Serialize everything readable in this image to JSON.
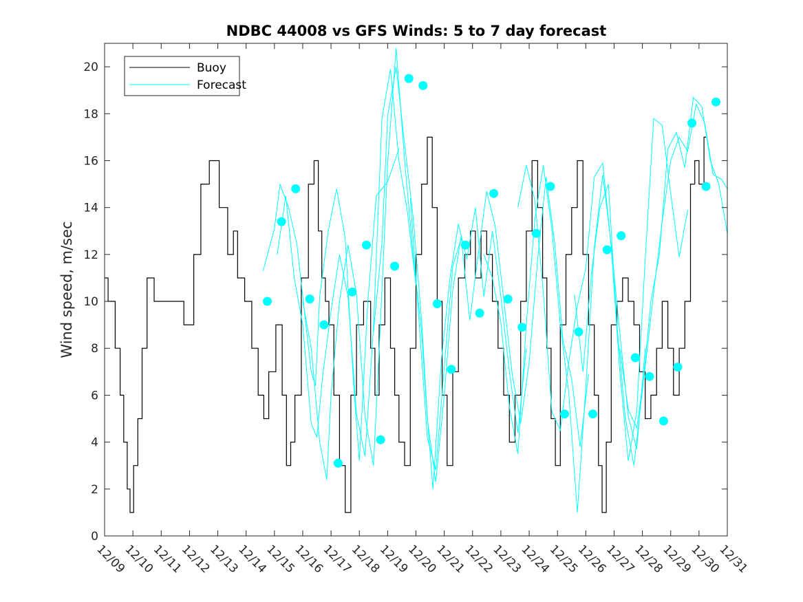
{
  "chart_data": {
    "type": "line",
    "title": "NDBC 44008 vs GFS Winds: 5 to 7 day forecast",
    "xlabel": "",
    "ylabel": "Wind speed, m/sec",
    "xlim": [
      0,
      22
    ],
    "ylim": [
      0,
      21
    ],
    "yticks": [
      0,
      2,
      4,
      6,
      8,
      10,
      12,
      14,
      16,
      18,
      20
    ],
    "x_tick_labels": [
      "12/09",
      "12/10",
      "12/11",
      "12/12",
      "12/13",
      "12/14",
      "12/15",
      "12/16",
      "12/17",
      "12/18",
      "12/19",
      "12/20",
      "12/21",
      "12/22",
      "12/23",
      "12/24",
      "12/25",
      "12/26",
      "12/27",
      "12/28",
      "12/29",
      "12/30",
      "12/31"
    ],
    "x_units": "days since 12/09 00:00",
    "legend": {
      "position": "top-left",
      "entries": [
        "Buoy",
        "Forecast"
      ]
    },
    "colors": {
      "buoy": "#000000",
      "forecast": "#00ffff",
      "axes": "#262626"
    },
    "buoy_series": {
      "name": "Buoy",
      "color": "#000000",
      "x": [
        0,
        0.25,
        0.5,
        0.6,
        0.75,
        0.85,
        0.95,
        1.1,
        1.25,
        1.4,
        1.6,
        1.9,
        2.3,
        2.6,
        3.0,
        3.3,
        3.5,
        3.9,
        4.2,
        4.5,
        4.6,
        4.8,
        5.1,
        5.3,
        5.55,
        5.7,
        5.9,
        6.2,
        6.35,
        6.5,
        6.65,
        6.8,
        7.1,
        7.3,
        7.5,
        7.6,
        7.75,
        7.85,
        8.0,
        8.2,
        8.4,
        8.6,
        8.8,
        9.0,
        9.3,
        9.5,
        9.6,
        9.8,
        10.0,
        10.2,
        10.3,
        10.5,
        10.7,
        10.9,
        11.1,
        11.3,
        11.5,
        11.65,
        11.85,
        12.0,
        12.2,
        12.4,
        12.6,
        12.85,
        13.0,
        13.2,
        13.4,
        13.6,
        13.8,
        14.0,
        14.2,
        14.4,
        14.6,
        14.8,
        15.0,
        15.2,
        15.4,
        15.55,
        15.7,
        15.85,
        16.0,
        16.2,
        16.4,
        16.6,
        16.8,
        17.0,
        17.2,
        17.4,
        17.5,
        17.65,
        17.8,
        18.0,
        18.2,
        18.4,
        18.6,
        18.8,
        19.0,
        19.2,
        19.4,
        19.6,
        19.8,
        20.0,
        20.2,
        20.4,
        20.6,
        20.8,
        20.9,
        21.1,
        21.25
      ],
      "y": [
        11,
        10,
        8,
        6,
        4,
        2,
        1,
        3,
        5,
        8,
        11,
        10,
        10,
        10,
        9,
        12,
        15,
        16,
        14,
        12,
        13,
        11,
        10,
        8,
        6,
        5,
        7,
        9,
        6,
        3,
        4,
        6,
        11,
        15,
        16,
        13,
        11,
        10,
        9,
        6,
        3,
        1,
        6,
        9,
        10,
        8,
        6,
        9,
        11,
        8,
        6,
        4,
        3,
        8,
        12,
        15,
        17,
        14,
        10,
        6,
        3,
        7,
        11,
        12,
        13,
        11,
        13,
        12,
        10,
        8,
        6,
        4,
        6,
        10,
        13,
        16,
        14,
        11,
        8,
        5,
        3,
        9,
        12,
        14,
        16,
        12,
        9,
        6,
        3,
        1,
        4,
        9,
        10,
        11,
        10,
        9,
        7,
        5,
        6,
        8,
        10,
        8,
        6,
        8,
        10,
        15,
        16,
        15,
        17
      ]
    },
    "forecast_runs": [
      {
        "color": "#00ffff",
        "x": [
          5.6,
          6.0,
          6.2,
          6.5,
          6.8,
          7.0,
          7.3,
          7.45,
          7.6,
          7.9,
          8.2,
          8.5,
          8.8,
          9.0,
          9.3,
          9.6,
          10.0,
          10.4
        ],
        "y": [
          11.3,
          13.1,
          15.0,
          14.0,
          12.4,
          10.2,
          7.0,
          6.4,
          10.2,
          13.0,
          14.8,
          12.7,
          6.4,
          3.2,
          10.0,
          14.5,
          15.1,
          16.5
        ]
      },
      {
        "color": "#00ffff",
        "x": [
          6.1,
          6.4,
          6.7,
          7.0,
          7.3,
          7.5,
          7.7,
          8.0,
          8.3,
          8.6,
          8.9,
          9.2,
          9.5,
          9.8,
          10.1,
          10.4,
          10.7,
          11.0
        ],
        "y": [
          12.0,
          14.5,
          11.0,
          9.0,
          4.8,
          4.2,
          6.8,
          9.6,
          12.0,
          10.2,
          5.2,
          3.4,
          8.9,
          17.8,
          19.9,
          16.0,
          13.8,
          10.7
        ]
      },
      {
        "color": "#00ffff",
        "x": [
          7.0,
          7.3,
          7.6,
          7.85,
          8.0,
          8.3,
          8.6,
          8.9,
          9.2,
          9.5,
          9.75,
          10.0,
          10.3,
          10.6,
          10.9,
          11.2,
          11.4,
          11.7,
          12.0,
          12.3,
          12.6
        ],
        "y": [
          10.0,
          8.0,
          4.0,
          2.4,
          6.0,
          10.0,
          12.4,
          10.3,
          5.1,
          3.0,
          9.2,
          15.9,
          20.8,
          16.0,
          12.0,
          8.7,
          5.0,
          2.3,
          6.0,
          10.5,
          12.8
        ]
      },
      {
        "color": "#00ffff",
        "x": [
          9.5,
          9.8,
          10.0,
          10.3,
          10.6,
          10.9,
          11.2,
          11.4,
          11.6,
          11.9,
          12.2,
          12.5,
          12.8,
          13.1,
          13.4,
          13.7,
          14.0,
          14.3,
          14.6,
          14.9
        ],
        "y": [
          8.7,
          12.5,
          17.9,
          20.0,
          16.7,
          13.6,
          9.2,
          5.1,
          2.0,
          7.5,
          11.0,
          13.3,
          11.8,
          14.0,
          10.2,
          13.0,
          10.2,
          7.0,
          4.4,
          8.0
        ]
      },
      {
        "color": "#00ffff",
        "x": [
          10.8,
          11.1,
          11.4,
          11.7,
          12.0,
          12.3,
          12.6,
          12.9,
          13.2,
          13.5,
          13.8,
          14.1,
          14.4,
          14.7,
          15.0,
          15.3,
          15.6,
          15.9,
          16.2,
          16.5,
          16.8,
          17.1
        ],
        "y": [
          14.4,
          9.3,
          4.2,
          2.8,
          7.2,
          11.5,
          12.7,
          9.2,
          12.0,
          14.7,
          13.2,
          10.1,
          6.9,
          4.8,
          7.4,
          11.8,
          15.3,
          12.5,
          8.3,
          6.7,
          3.8,
          6.9
        ]
      },
      {
        "color": "#00ffff",
        "x": [
          13.4,
          13.7,
          14.0,
          14.3,
          14.6,
          14.9,
          15.2,
          15.5,
          15.8,
          16.1,
          16.4,
          16.7,
          17.0,
          17.3,
          17.6,
          17.9,
          18.2,
          18.5,
          18.8,
          19.1
        ],
        "y": [
          12.0,
          11.0,
          9.1,
          5.5,
          3.5,
          9.0,
          13.5,
          15.8,
          13.1,
          9.0,
          6.1,
          1.0,
          6.3,
          12.3,
          15.4,
          12.4,
          8.7,
          5.1,
          3.7,
          8.0
        ]
      },
      {
        "color": "#00ffff",
        "x": [
          14.6,
          14.9,
          15.2,
          15.5,
          15.8,
          16.1,
          16.4,
          16.7,
          17.0,
          17.3,
          17.6,
          17.9,
          18.2,
          18.5,
          18.8,
          19.1,
          19.4,
          19.7,
          20.0,
          20.3,
          20.6
        ],
        "y": [
          14.0,
          15.8,
          14.3,
          10.4,
          5.3,
          4.5,
          7.4,
          9.8,
          11.4,
          15.3,
          15.9,
          12.3,
          7.0,
          3.2,
          5.3,
          11.8,
          17.8,
          17.5,
          14.6,
          11.9,
          13.9
        ]
      },
      {
        "color": "#00ffff",
        "x": [
          16.6,
          16.9,
          17.2,
          17.5,
          17.8,
          18.1,
          18.4,
          18.7,
          19.0,
          19.3,
          19.6,
          19.9,
          20.2,
          20.5,
          20.8,
          21.1,
          21.4,
          21.7,
          22.0
        ],
        "y": [
          10.3,
          7.0,
          11.2,
          14.0,
          15.0,
          9.0,
          5.0,
          3.0,
          6.2,
          10.0,
          12.0,
          16.5,
          17.2,
          15.7,
          18.7,
          18.3,
          16.0,
          15.0,
          12.9
        ]
      },
      {
        "color": "#00ffff",
        "x": [
          18.2,
          18.5,
          18.8,
          19.1,
          19.4,
          19.7,
          20.0,
          20.3,
          20.6,
          20.9,
          21.2,
          21.5,
          21.8,
          22.0
        ],
        "y": [
          8.0,
          5.4,
          4.6,
          7.2,
          10.4,
          13.4,
          16.0,
          17.0,
          16.4,
          18.4,
          17.6,
          15.4,
          15.2,
          14.8
        ]
      }
    ],
    "forecast_markers": {
      "color": "#00ffff",
      "x": [
        5.75,
        6.25,
        6.75,
        7.25,
        7.75,
        8.25,
        8.75,
        9.25,
        9.75,
        10.25,
        10.75,
        11.25,
        11.75,
        12.25,
        12.75,
        13.25,
        13.75,
        14.25,
        14.75,
        15.25,
        15.75,
        16.25,
        16.75,
        17.25,
        17.75,
        18.25,
        18.75,
        19.25,
        19.75,
        20.25,
        20.75,
        21.25
      ],
      "y": [
        10.0,
        13.4,
        14.8,
        10.1,
        9.0,
        3.1,
        10.4,
        12.4,
        4.1,
        11.5,
        19.5,
        19.2,
        9.9,
        7.1,
        12.4,
        9.5,
        14.6,
        10.1,
        8.9,
        12.9,
        14.9,
        5.2,
        8.7,
        5.2,
        12.2,
        12.8,
        7.6,
        6.8,
        4.9,
        7.2,
        17.6,
        14.9
      ]
    },
    "extra_marker": {
      "x": 21.6,
      "y": 18.5
    },
    "grid": false
  }
}
